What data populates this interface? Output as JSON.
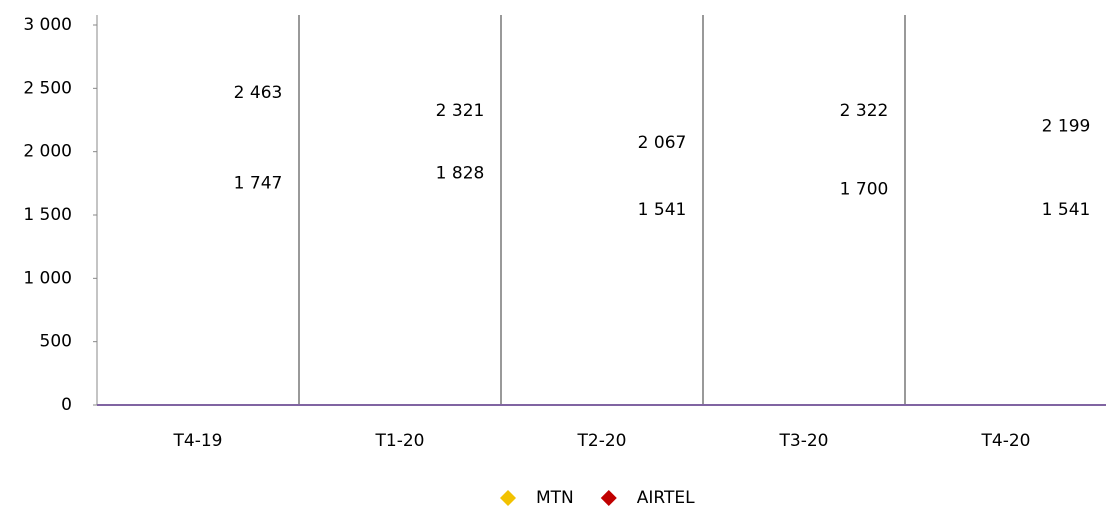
{
  "chart_data": {
    "type": "line",
    "categories": [
      "T4-19",
      "T1-20",
      "T2-20",
      "T3-20",
      "T4-20"
    ],
    "series": [
      {
        "name": "MTN",
        "color": "#f2c200",
        "values": [
          2463,
          2321,
          2067,
          2322,
          2199
        ],
        "value_labels": [
          "2 463",
          "2 321",
          "2 067",
          "2 322",
          "2 199"
        ]
      },
      {
        "name": "AIRTEL",
        "color": "#c00000",
        "values": [
          1747,
          1828,
          1541,
          1700,
          1541
        ],
        "value_labels": [
          "1 747",
          "1 828",
          "1 541",
          "1 700",
          "1 541"
        ]
      }
    ],
    "ylim": [
      0,
      3000
    ],
    "yticks": [
      0,
      500,
      {
        "value": 1000,
        "label": "1 000"
      },
      {
        "value": 1500,
        "label": "1 500"
      },
      {
        "value": 2000,
        "label": "2 000"
      },
      {
        "value": 2500,
        "label": "2 500"
      },
      {
        "value": 3000,
        "label": "3 000"
      }
    ],
    "legend": "bottom"
  }
}
